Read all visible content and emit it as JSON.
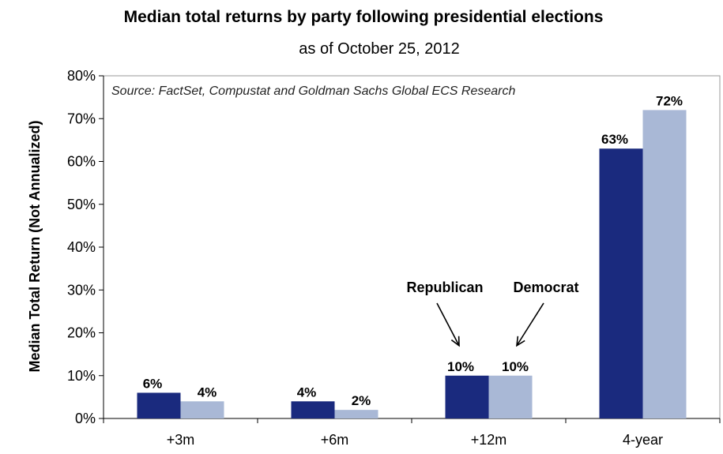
{
  "chart_data": {
    "type": "bar",
    "title": "Median total returns by party following presidential elections",
    "subtitle": "as of October 25, 2012",
    "source": "Source: FactSet, Compustat and Goldman Sachs Global ECS Research",
    "ylabel": "Median Total Return  (Not Annualized)",
    "xlabel": "",
    "ylim": [
      0,
      80
    ],
    "yticks": [
      "0%",
      "10%",
      "20%",
      "30%",
      "40%",
      "50%",
      "60%",
      "70%",
      "80%"
    ],
    "categories": [
      "+3m",
      "+6m",
      "+12m",
      "4-year"
    ],
    "grid": false,
    "legend": "none",
    "series": [
      {
        "name": "Republican",
        "color": "#1a2a7e",
        "values": [
          6,
          4,
          10,
          63
        ],
        "labels": [
          "6%",
          "4%",
          "10%",
          "63%"
        ]
      },
      {
        "name": "Democrat",
        "color": "#a9b8d6",
        "values": [
          4,
          2,
          10,
          72
        ],
        "labels": [
          "4%",
          "2%",
          "10%",
          "72%"
        ]
      }
    ],
    "annotations": [
      {
        "text": "Republican",
        "series": 0,
        "category": 2
      },
      {
        "text": "Democrat",
        "series": 1,
        "category": 2
      }
    ]
  }
}
